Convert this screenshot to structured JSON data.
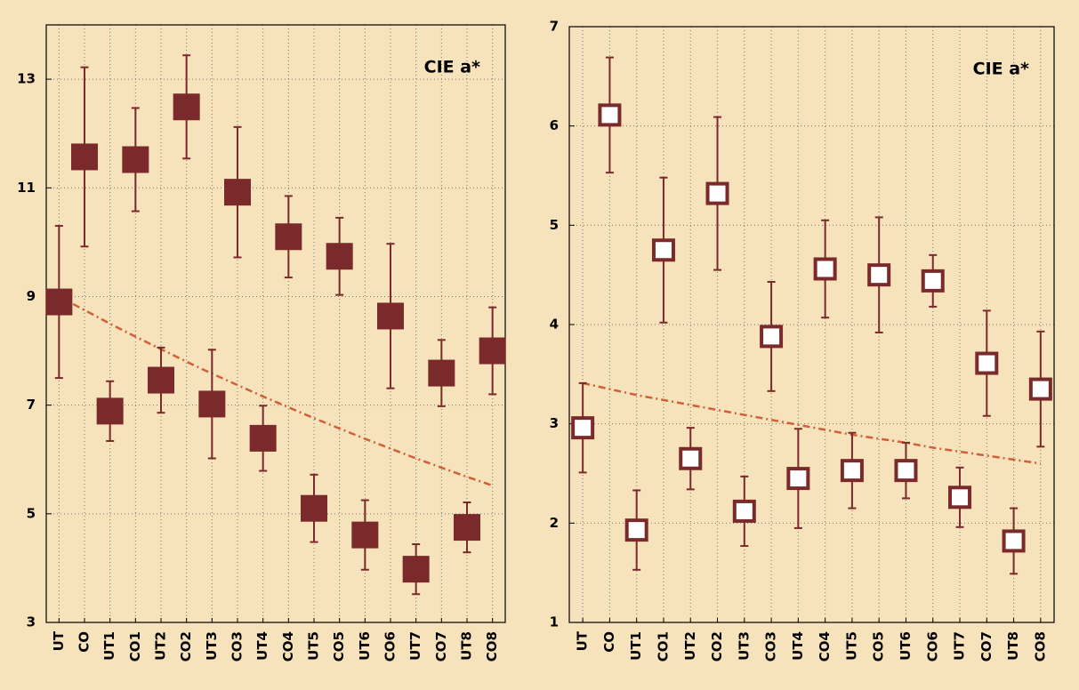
{
  "chart_data": [
    {
      "type": "errorbar",
      "annotation": "CIE a*",
      "categories": [
        "UT",
        "CO",
        "UT1",
        "CO1",
        "UT2",
        "CO2",
        "UT3",
        "CO3",
        "UT4",
        "CO4",
        "UT5",
        "CO5",
        "UT6",
        "CO6",
        "UT7",
        "CO7",
        "UT8",
        "CO8"
      ],
      "values": [
        8.9,
        11.57,
        6.89,
        11.52,
        7.46,
        12.49,
        7.02,
        10.92,
        6.39,
        10.1,
        5.1,
        9.74,
        4.61,
        8.64,
        3.98,
        7.59,
        4.75,
        8.0
      ],
      "errors": [
        1.4,
        1.65,
        0.55,
        0.95,
        0.6,
        0.95,
        1.0,
        1.2,
        0.6,
        0.75,
        0.62,
        0.71,
        0.64,
        1.33,
        0.46,
        0.61,
        0.46,
        0.8
      ],
      "color": "#7a2a2a",
      "marker": "filled",
      "trend": {
        "color": "#d0603a",
        "values": [
          9.0,
          8.75,
          8.5,
          8.26,
          8.03,
          7.8,
          7.58,
          7.37,
          7.16,
          6.96,
          6.76,
          6.57,
          6.38,
          6.2,
          6.02,
          5.85,
          5.68,
          5.52
        ]
      },
      "ylim": [
        3,
        14
      ],
      "yticks": [
        3,
        5,
        7,
        9,
        11,
        13
      ],
      "grid": true
    },
    {
      "type": "errorbar",
      "annotation": "CIE a*",
      "categories": [
        "UT",
        "CO",
        "UT1",
        "CO1",
        "UT2",
        "CO2",
        "UT3",
        "CO3",
        "UT4",
        "CO4",
        "UT5",
        "CO5",
        "UT6",
        "CO6",
        "UT7",
        "CO7",
        "UT8",
        "CO8"
      ],
      "values": [
        2.96,
        6.11,
        1.93,
        4.75,
        2.65,
        5.32,
        2.12,
        3.88,
        2.45,
        4.56,
        2.53,
        4.5,
        2.53,
        4.44,
        2.26,
        3.61,
        1.82,
        3.35
      ],
      "errors": [
        0.45,
        0.58,
        0.4,
        0.73,
        0.31,
        0.77,
        0.35,
        0.55,
        0.5,
        0.49,
        0.38,
        0.58,
        0.28,
        0.26,
        0.3,
        0.53,
        0.33,
        0.58
      ],
      "color": "#7a2a2a",
      "marker": "hollow",
      "trend": {
        "color": "#d0603a",
        "values": [
          3.41,
          3.35,
          3.29,
          3.24,
          3.19,
          3.14,
          3.09,
          3.04,
          2.99,
          2.94,
          2.89,
          2.85,
          2.81,
          2.76,
          2.72,
          2.68,
          2.64,
          2.6
        ]
      },
      "ylim": [
        1,
        7
      ],
      "yticks": [
        1,
        2,
        3,
        4,
        5,
        6,
        7
      ],
      "grid": true
    }
  ]
}
